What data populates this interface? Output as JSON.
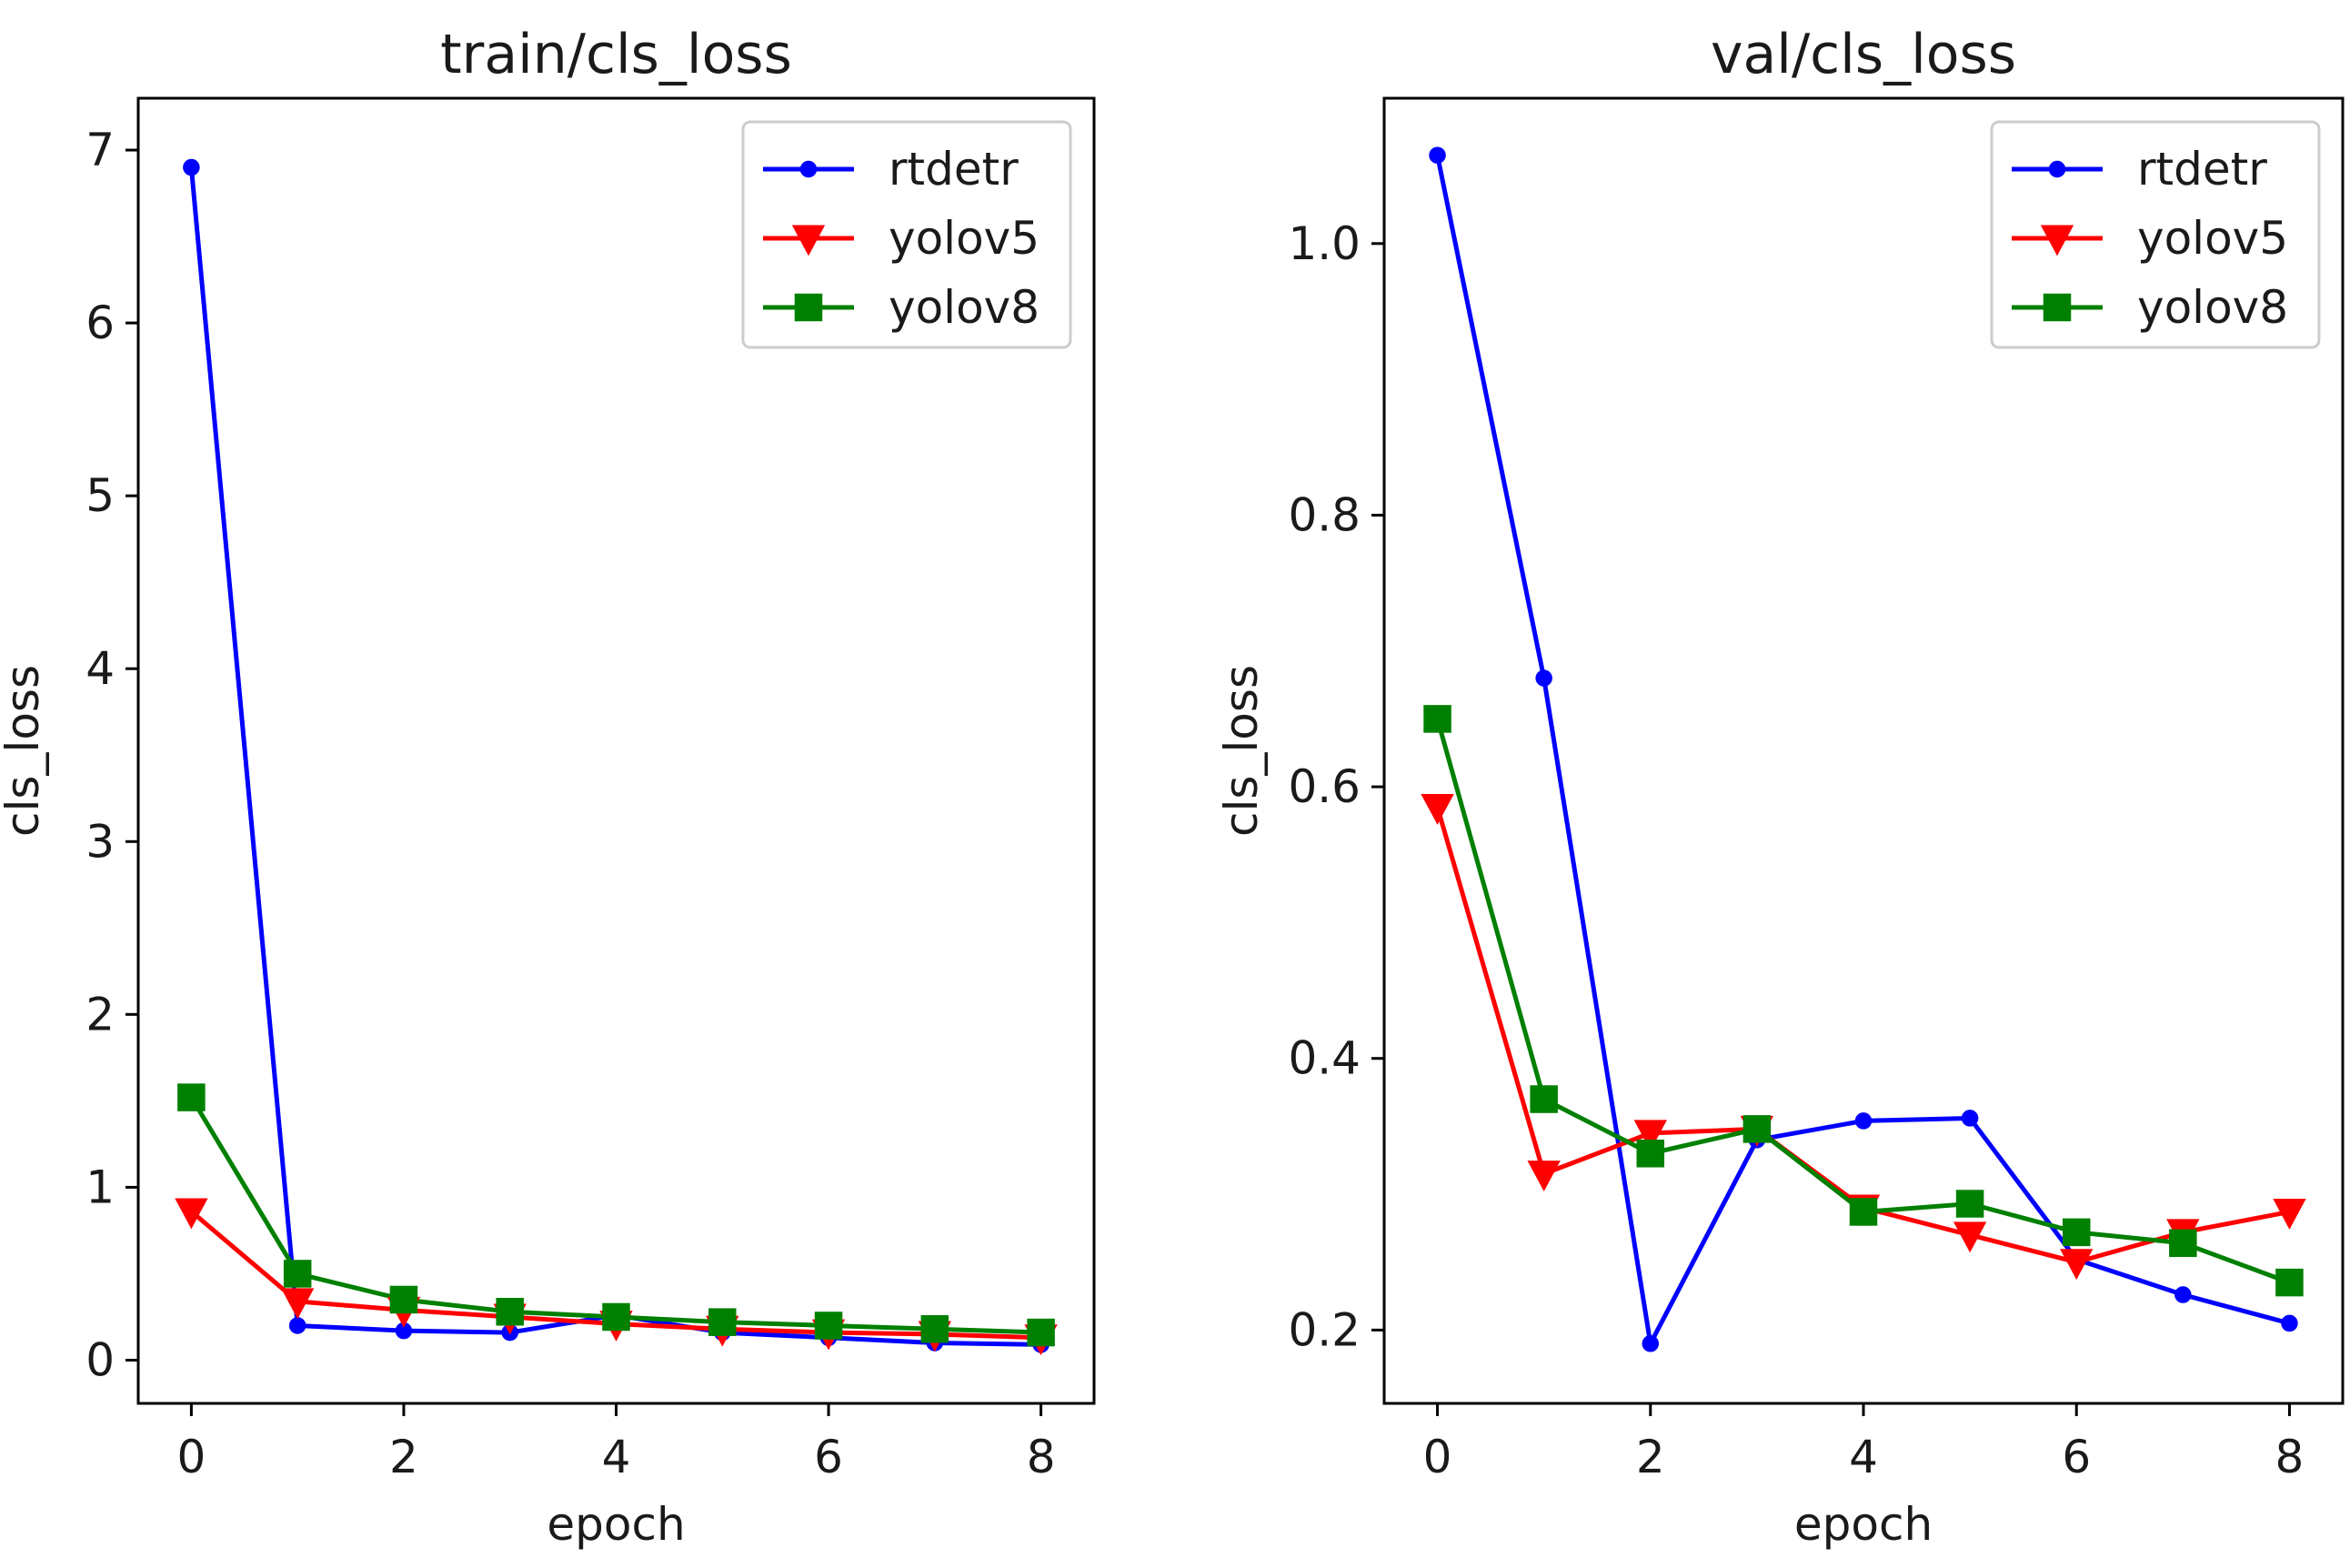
{
  "chart_data": [
    {
      "type": "line",
      "title": "train/cls_loss",
      "xlabel": "epoch",
      "ylabel": "cls_loss",
      "xlim": [
        -0.5,
        8.5
      ],
      "ylim": [
        -0.25,
        7.3
      ],
      "xticks": [
        0,
        2,
        4,
        6,
        8
      ],
      "yticks": [
        0,
        1,
        2,
        3,
        4,
        5,
        6,
        7
      ],
      "legend_position": "top-right",
      "grid": false,
      "x": [
        0,
        1,
        2,
        3,
        4,
        5,
        6,
        7,
        8
      ],
      "series": [
        {
          "name": "rtdetr",
          "color": "#0000ff",
          "marker": "circle",
          "values": [
            6.9,
            0.2,
            0.17,
            0.16,
            0.26,
            0.16,
            0.13,
            0.1,
            0.09
          ]
        },
        {
          "name": "yolov5",
          "color": "#ff0000",
          "marker": "triangle-down",
          "values": [
            0.86,
            0.34,
            0.29,
            0.25,
            0.21,
            0.18,
            0.16,
            0.15,
            0.13
          ]
        },
        {
          "name": "yolov8",
          "color": "#008000",
          "marker": "square",
          "values": [
            1.52,
            0.5,
            0.35,
            0.28,
            0.25,
            0.22,
            0.2,
            0.18,
            0.16
          ]
        }
      ]
    },
    {
      "type": "line",
      "title": "val/cls_loss",
      "xlabel": "epoch",
      "ylabel": "cls_loss",
      "xlim": [
        -0.5,
        8.5
      ],
      "ylim": [
        0.146,
        1.107
      ],
      "xticks": [
        0,
        2,
        4,
        6,
        8
      ],
      "yticks": [
        0.2,
        0.4,
        0.6,
        0.8,
        1.0
      ],
      "ytick_labels": [
        "0.2",
        "0.4",
        "0.6",
        "0.8",
        "1.0"
      ],
      "legend_position": "top-right",
      "grid": false,
      "x": [
        0,
        1,
        2,
        3,
        4,
        5,
        6,
        7,
        8
      ],
      "series": [
        {
          "name": "rtdetr",
          "color": "#0000ff",
          "marker": "circle",
          "values": [
            1.065,
            0.68,
            0.19,
            0.34,
            0.354,
            0.356,
            0.252,
            0.226,
            0.205
          ]
        },
        {
          "name": "yolov5",
          "color": "#ff0000",
          "marker": "triangle-down",
          "values": [
            0.585,
            0.315,
            0.345,
            0.348,
            0.29,
            0.27,
            0.25,
            0.272,
            0.287
          ]
        },
        {
          "name": "yolov8",
          "color": "#008000",
          "marker": "square",
          "values": [
            0.65,
            0.37,
            0.33,
            0.348,
            0.287,
            0.293,
            0.272,
            0.264,
            0.235
          ]
        }
      ]
    }
  ]
}
